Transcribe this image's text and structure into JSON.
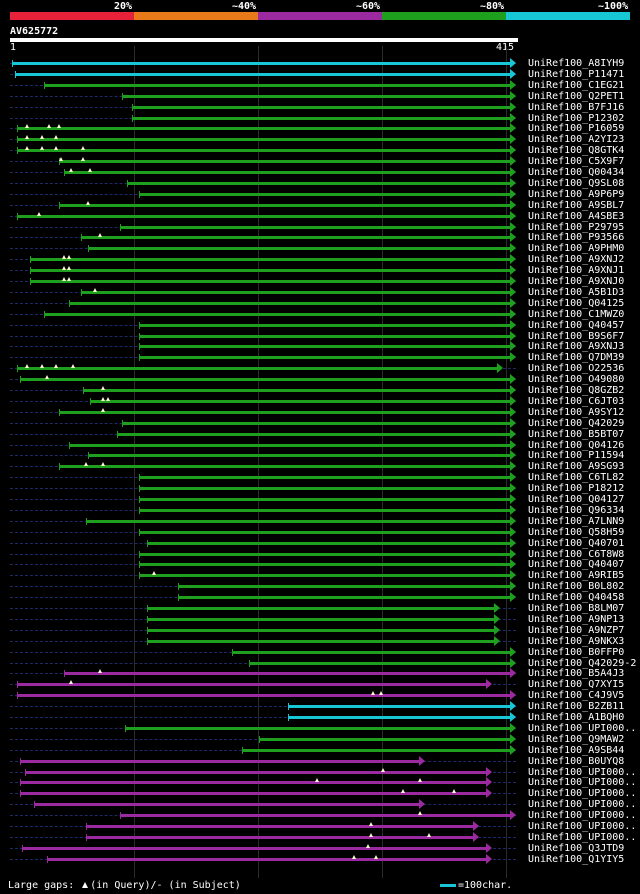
{
  "legend": {
    "colors": [
      "#e8213a",
      "#e87a1a",
      "#9b2aa0",
      "#1ea01e",
      "#18c7d6"
    ],
    "labels": [
      "20%",
      "~40%",
      "~60%",
      "~80%",
      "~100%"
    ]
  },
  "query": {
    "id": "AV625772",
    "start": "1",
    "end": "415",
    "length": 415
  },
  "footer": {
    "large_gaps": "Large gaps:",
    "in_query": "(in Query)/",
    "dash": "-",
    "in_subject": " (in Subject)",
    "scale": "=100char."
  },
  "hits": [
    {
      "name": "UniRef100_A8IYH9",
      "color": "#18c7d6",
      "start": 2,
      "end": 415,
      "gaps": []
    },
    {
      "name": "UniRef100_P11471",
      "color": "#18c7d6",
      "start": 4,
      "end": 415,
      "gaps": []
    },
    {
      "name": "UniRef100_C1EG21",
      "color": "#1ea01e",
      "start": 28,
      "end": 415,
      "gaps": []
    },
    {
      "name": "UniRef100_Q2PET1",
      "color": "#1ea01e",
      "start": 92,
      "end": 415,
      "gaps": []
    },
    {
      "name": "UniRef100_B7FJ16",
      "color": "#1ea01e",
      "start": 100,
      "end": 415,
      "gaps": []
    },
    {
      "name": "UniRef100_P12302",
      "color": "#1ea01e",
      "start": 100,
      "end": 415,
      "gaps": []
    },
    {
      "name": "UniRef100_P16059",
      "color": "#1ea01e",
      "start": 6,
      "end": 415,
      "gaps": [
        14,
        32,
        40
      ]
    },
    {
      "name": "UniRef100_A2YI23",
      "color": "#1ea01e",
      "start": 6,
      "end": 415,
      "gaps": [
        14,
        26,
        38
      ]
    },
    {
      "name": "UniRef100_Q8GTK4",
      "color": "#1ea01e",
      "start": 6,
      "end": 415,
      "gaps": [
        14,
        26,
        38,
        60
      ]
    },
    {
      "name": "UniRef100_C5X9F7",
      "color": "#1ea01e",
      "start": 40,
      "end": 415,
      "gaps": [
        42,
        60
      ]
    },
    {
      "name": "UniRef100_Q00434",
      "color": "#1ea01e",
      "start": 44,
      "end": 415,
      "gaps": [
        50,
        66
      ]
    },
    {
      "name": "UniRef100_Q9SL08",
      "color": "#1ea01e",
      "start": 96,
      "end": 415,
      "gaps": []
    },
    {
      "name": "UniRef100_A9P6P9",
      "color": "#1ea01e",
      "start": 106,
      "end": 415,
      "gaps": []
    },
    {
      "name": "UniRef100_A9SBL7",
      "color": "#1ea01e",
      "start": 40,
      "end": 415,
      "gaps": [
        64
      ]
    },
    {
      "name": "UniRef100_A4SBE3",
      "color": "#1ea01e",
      "start": 6,
      "end": 415,
      "gaps": [
        24
      ]
    },
    {
      "name": "UniRef100_P29795",
      "color": "#1ea01e",
      "start": 90,
      "end": 415,
      "gaps": []
    },
    {
      "name": "UniRef100_P93566",
      "color": "#1ea01e",
      "start": 58,
      "end": 415,
      "gaps": [
        74
      ]
    },
    {
      "name": "UniRef100_A9PHM0",
      "color": "#1ea01e",
      "start": 64,
      "end": 415,
      "gaps": []
    },
    {
      "name": "UniRef100_A9XNJ2",
      "color": "#1ea01e",
      "start": 16,
      "end": 415,
      "gaps": [
        44,
        48
      ]
    },
    {
      "name": "UniRef100_A9XNJ1",
      "color": "#1ea01e",
      "start": 16,
      "end": 415,
      "gaps": [
        44,
        48
      ]
    },
    {
      "name": "UniRef100_A9XNJ0",
      "color": "#1ea01e",
      "start": 16,
      "end": 415,
      "gaps": [
        44,
        48
      ]
    },
    {
      "name": "UniRef100_A5B1D3",
      "color": "#1ea01e",
      "start": 58,
      "end": 415,
      "gaps": [
        70
      ]
    },
    {
      "name": "UniRef100_Q04125",
      "color": "#1ea01e",
      "start": 48,
      "end": 415,
      "gaps": []
    },
    {
      "name": "UniRef100_C1MWZ0",
      "color": "#1ea01e",
      "start": 28,
      "end": 415,
      "gaps": []
    },
    {
      "name": "UniRef100_Q40457",
      "color": "#1ea01e",
      "start": 106,
      "end": 415,
      "gaps": []
    },
    {
      "name": "UniRef100_B9S6F7",
      "color": "#1ea01e",
      "start": 106,
      "end": 415,
      "gaps": []
    },
    {
      "name": "UniRef100_A9XNJ3",
      "color": "#1ea01e",
      "start": 106,
      "end": 415,
      "gaps": []
    },
    {
      "name": "UniRef100_Q7DM39",
      "color": "#1ea01e",
      "start": 106,
      "end": 415,
      "gaps": []
    },
    {
      "name": "UniRef100_O22536",
      "color": "#1ea01e",
      "start": 6,
      "end": 404,
      "gaps": [
        14,
        26,
        38,
        52
      ]
    },
    {
      "name": "UniRef100_O49080",
      "color": "#1ea01e",
      "start": 8,
      "end": 415,
      "gaps": [
        30
      ]
    },
    {
      "name": "UniRef100_Q8GZB2",
      "color": "#1ea01e",
      "start": 60,
      "end": 415,
      "gaps": [
        76
      ]
    },
    {
      "name": "UniRef100_C6JT03",
      "color": "#1ea01e",
      "start": 66,
      "end": 415,
      "gaps": [
        76,
        80
      ]
    },
    {
      "name": "UniRef100_A9SY12",
      "color": "#1ea01e",
      "start": 40,
      "end": 415,
      "gaps": [
        76
      ]
    },
    {
      "name": "UniRef100_Q42029",
      "color": "#1ea01e",
      "start": 92,
      "end": 415,
      "gaps": []
    },
    {
      "name": "UniRef100_B5BT07",
      "color": "#1ea01e",
      "start": 88,
      "end": 415,
      "gaps": []
    },
    {
      "name": "UniRef100_Q04126",
      "color": "#1ea01e",
      "start": 48,
      "end": 415,
      "gaps": []
    },
    {
      "name": "UniRef100_P11594",
      "color": "#1ea01e",
      "start": 64,
      "end": 415,
      "gaps": []
    },
    {
      "name": "UniRef100_A9SG93",
      "color": "#1ea01e",
      "start": 40,
      "end": 415,
      "gaps": [
        62,
        76
      ]
    },
    {
      "name": "UniRef100_C6TL82",
      "color": "#1ea01e",
      "start": 106,
      "end": 415,
      "gaps": []
    },
    {
      "name": "UniRef100_P18212",
      "color": "#1ea01e",
      "start": 106,
      "end": 415,
      "gaps": []
    },
    {
      "name": "UniRef100_Q04127",
      "color": "#1ea01e",
      "start": 106,
      "end": 415,
      "gaps": []
    },
    {
      "name": "UniRef100_Q96334",
      "color": "#1ea01e",
      "start": 106,
      "end": 415,
      "gaps": []
    },
    {
      "name": "UniRef100_A7LNN9",
      "color": "#1ea01e",
      "start": 62,
      "end": 415,
      "gaps": []
    },
    {
      "name": "UniRef100_Q58H59",
      "color": "#1ea01e",
      "start": 106,
      "end": 415,
      "gaps": []
    },
    {
      "name": "UniRef100_Q40701",
      "color": "#1ea01e",
      "start": 112,
      "end": 415,
      "gaps": []
    },
    {
      "name": "UniRef100_C6T8W8",
      "color": "#1ea01e",
      "start": 106,
      "end": 415,
      "gaps": []
    },
    {
      "name": "UniRef100_Q40407",
      "color": "#1ea01e",
      "start": 106,
      "end": 415,
      "gaps": []
    },
    {
      "name": "UniRef100_A9RIB5",
      "color": "#1ea01e",
      "start": 106,
      "end": 415,
      "gaps": [
        118
      ]
    },
    {
      "name": "UniRef100_B0L802",
      "color": "#1ea01e",
      "start": 138,
      "end": 415,
      "gaps": []
    },
    {
      "name": "UniRef100_Q40458",
      "color": "#1ea01e",
      "start": 138,
      "end": 415,
      "gaps": []
    },
    {
      "name": "UniRef100_B8LM07",
      "color": "#1ea01e",
      "start": 112,
      "end": 402,
      "gaps": []
    },
    {
      "name": "UniRef100_A9NP13",
      "color": "#1ea01e",
      "start": 112,
      "end": 402,
      "gaps": []
    },
    {
      "name": "UniRef100_A9NZP7",
      "color": "#1ea01e",
      "start": 112,
      "end": 402,
      "gaps": []
    },
    {
      "name": "UniRef100_A9NKX3",
      "color": "#1ea01e",
      "start": 112,
      "end": 402,
      "gaps": []
    },
    {
      "name": "UniRef100_B0FFP0",
      "color": "#1ea01e",
      "start": 182,
      "end": 415,
      "gaps": []
    },
    {
      "name": "UniRef100_Q42029-2",
      "color": "#1ea01e",
      "start": 196,
      "end": 415,
      "gaps": []
    },
    {
      "name": "UniRef100_B5A4J3",
      "color": "#9b2aa0",
      "start": 44,
      "end": 415,
      "gaps": [
        74
      ]
    },
    {
      "name": "UniRef100_Q7XYI5",
      "color": "#9b2aa0",
      "start": 6,
      "end": 395,
      "gaps": [
        50
      ]
    },
    {
      "name": "UniRef100_C4J9V5",
      "color": "#9b2aa0",
      "start": 6,
      "end": 415,
      "gaps": [
        298,
        304
      ]
    },
    {
      "name": "UniRef100_B2ZB11",
      "color": "#18c7d6",
      "start": 228,
      "end": 415,
      "gaps": []
    },
    {
      "name": "UniRef100_A1BQH0",
      "color": "#18c7d6",
      "start": 228,
      "end": 415,
      "gaps": []
    },
    {
      "name": "UniRef100_UPI000..",
      "color": "#1ea01e",
      "start": 94,
      "end": 415,
      "gaps": []
    },
    {
      "name": "UniRef100_Q9MAW2",
      "color": "#1ea01e",
      "start": 204,
      "end": 415,
      "gaps": []
    },
    {
      "name": "UniRef100_A9SB44",
      "color": "#1ea01e",
      "start": 190,
      "end": 415,
      "gaps": []
    },
    {
      "name": "UniRef100_B0UYQ8",
      "color": "#9b2aa0",
      "start": 8,
      "end": 340,
      "gaps": []
    },
    {
      "name": "UniRef100_UPI000..",
      "color": "#9b2aa0",
      "start": 12,
      "end": 395,
      "gaps": [
        306
      ]
    },
    {
      "name": "UniRef100_UPI000..",
      "color": "#9b2aa0",
      "start": 8,
      "end": 395,
      "gaps": [
        252,
        336
      ]
    },
    {
      "name": "UniRef100_UPI000..",
      "color": "#9b2aa0",
      "start": 8,
      "end": 395,
      "gaps": [
        322,
        364
      ]
    },
    {
      "name": "UniRef100_UPI000..",
      "color": "#9b2aa0",
      "start": 20,
      "end": 340,
      "gaps": []
    },
    {
      "name": "UniRef100_UPI000..",
      "color": "#9b2aa0",
      "start": 90,
      "end": 415,
      "gaps": [
        336
      ]
    },
    {
      "name": "UniRef100_UPI000..",
      "color": "#9b2aa0",
      "start": 62,
      "end": 385,
      "gaps": [
        296
      ]
    },
    {
      "name": "UniRef100_UPI000..",
      "color": "#9b2aa0",
      "start": 62,
      "end": 385,
      "gaps": [
        296,
        344
      ]
    },
    {
      "name": "UniRef100_Q3JTD9",
      "color": "#9b2aa0",
      "start": 10,
      "end": 395,
      "gaps": [
        294
      ]
    },
    {
      "name": "UniRef100_Q1YIY5",
      "color": "#9b2aa0",
      "start": 30,
      "end": 395,
      "gaps": [
        282,
        300
      ]
    }
  ]
}
